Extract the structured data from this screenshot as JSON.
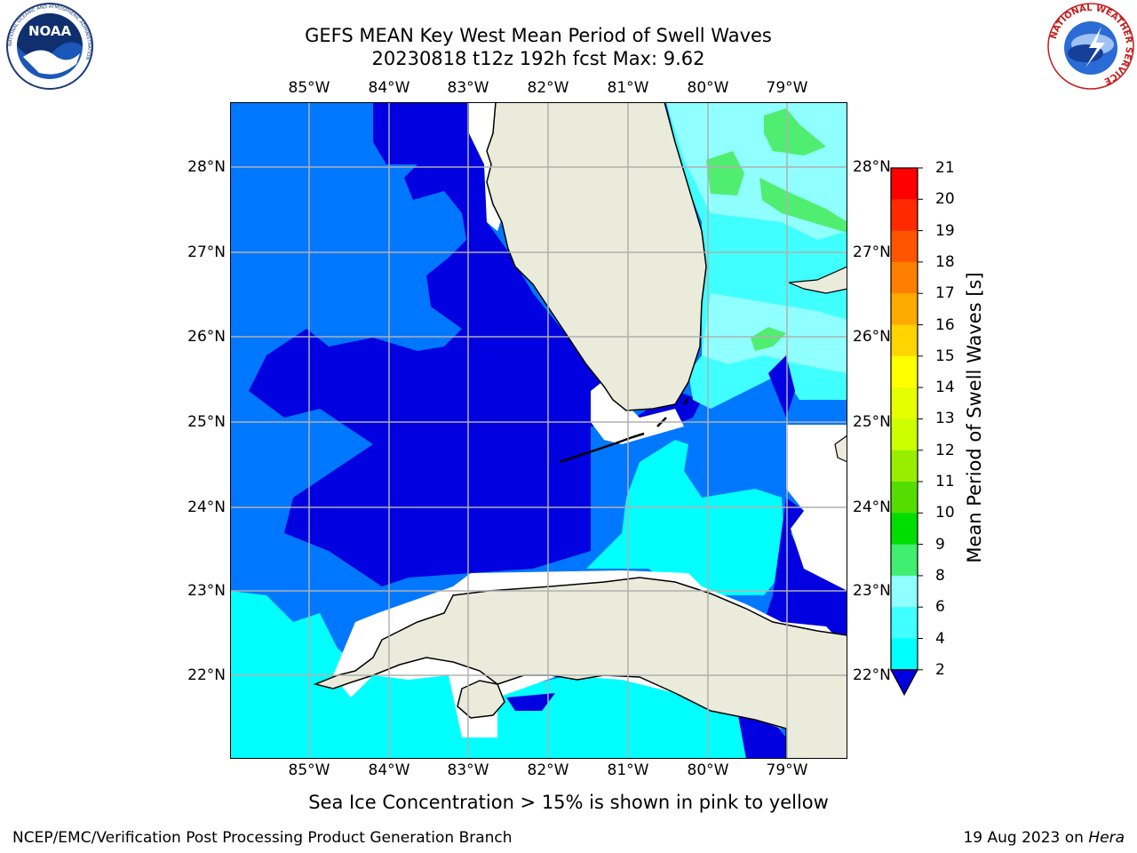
{
  "title": {
    "line1": "GEFS MEAN Key West Mean Period of Swell Waves",
    "line2": "20230818 t12z 192h fcst   Max: 9.62"
  },
  "map": {
    "lon_labels": [
      "85°W",
      "84°W",
      "83°W",
      "82°W",
      "81°W",
      "80°W",
      "79°W"
    ],
    "lat_labels": [
      "28°N",
      "27°N",
      "26°N",
      "25°N",
      "24°N",
      "23°N",
      "22°N"
    ],
    "colors": {
      "land": "#ebebdc",
      "sea_2_4": "#0077ff",
      "sea_below_2": "#0000e0",
      "sea_4_6": "#00ffff",
      "sea_6_8": "#40ffff",
      "sea_8_9": "#90ffff",
      "sea_9_10": "#50ee70",
      "no_data": "#ffffff",
      "grid": "#b0b0b0"
    }
  },
  "colorbar": {
    "title": "Mean Period of Swell Waves [s]",
    "ticks": [
      "21",
      "20",
      "19",
      "18",
      "17",
      "16",
      "15",
      "14",
      "13",
      "12",
      "11",
      "10",
      "9",
      "8",
      "6",
      "4",
      "2"
    ],
    "colors": [
      "#ff0000",
      "#ff2a00",
      "#ff5500",
      "#ff8000",
      "#ffaa00",
      "#ffd400",
      "#ffff00",
      "#e6ff00",
      "#ccff00",
      "#99ee00",
      "#55dd00",
      "#00dd00",
      "#40ee70",
      "#90ffff",
      "#40ffff",
      "#00ffff",
      "#0077ff"
    ],
    "under_color": "#0000e0"
  },
  "note": "Sea Ice Concentration > 15% is shown in pink to yellow",
  "footer": {
    "left": "NCEP/EMC/Verification Post Processing Product Generation Branch",
    "date": "19 Aug 2023 on ",
    "host": "Hera"
  },
  "logos": {
    "noaa_text": "NOAA",
    "noaa_ring": "NATIONAL OCEANIC AND ATMOSPHERIC ADMINISTRATION",
    "nws_ring": "NATIONAL WEATHER SERVICE"
  }
}
